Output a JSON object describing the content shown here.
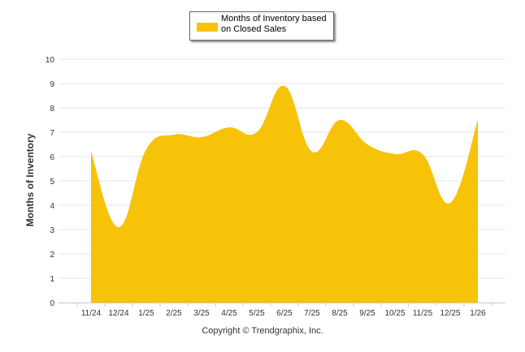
{
  "chart_data": {
    "type": "area",
    "categories": [
      "11/24",
      "12/24",
      "1/25",
      "2/25",
      "3/25",
      "4/25",
      "5/25",
      "6/25",
      "7/25",
      "8/25",
      "9/25",
      "10/25",
      "11/25",
      "12/25",
      "1/26"
    ],
    "series": [
      {
        "name": "Months of Inventory based on Closed Sales",
        "values": [
          6.2,
          3.1,
          6.3,
          6.9,
          6.8,
          7.2,
          7.0,
          8.9,
          6.2,
          7.5,
          6.5,
          6.1,
          6.1,
          4.1,
          7.5
        ],
        "color": "#f7c308"
      }
    ],
    "ylabel": "Months of Inventory",
    "ylim": [
      0,
      10
    ],
    "yticks": [
      0,
      1,
      2,
      3,
      4,
      5,
      6,
      7,
      8,
      9,
      10
    ],
    "grid": true,
    "legend": "top-center"
  },
  "footer": {
    "credit": "Copyright © Trendgraphix, Inc."
  }
}
